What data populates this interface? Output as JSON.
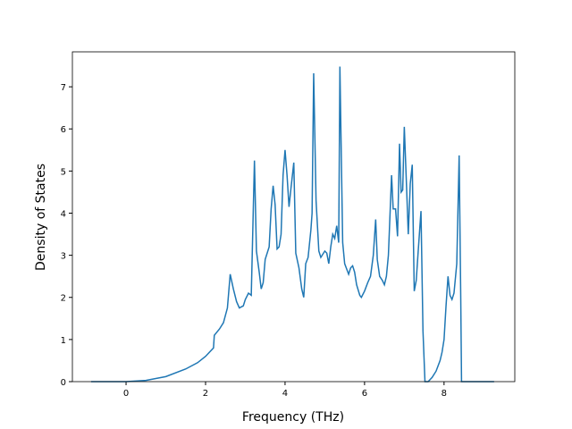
{
  "chart_data": {
    "type": "line",
    "xlabel": "Frequency (THz)",
    "ylabel": "Density of States",
    "x": [
      -0.88,
      0,
      0.5,
      1.0,
      1.5,
      1.8,
      2.0,
      2.2,
      2.22,
      2.35,
      2.45,
      2.55,
      2.62,
      2.7,
      2.78,
      2.85,
      2.95,
      3.0,
      3.08,
      3.15,
      3.23,
      3.28,
      3.35,
      3.4,
      3.45,
      3.5,
      3.6,
      3.65,
      3.7,
      3.75,
      3.8,
      3.85,
      3.9,
      3.95,
      4.0,
      4.05,
      4.1,
      4.15,
      4.22,
      4.27,
      4.35,
      4.42,
      4.47,
      4.52,
      4.58,
      4.65,
      4.68,
      4.72,
      4.78,
      4.85,
      4.9,
      5.0,
      5.05,
      5.1,
      5.15,
      5.2,
      5.25,
      5.3,
      5.35,
      5.38,
      5.45,
      5.5,
      5.6,
      5.65,
      5.7,
      5.75,
      5.8,
      5.88,
      5.92,
      6.0,
      6.08,
      6.15,
      6.22,
      6.28,
      6.32,
      6.38,
      6.45,
      6.5,
      6.55,
      6.6,
      6.68,
      6.72,
      6.78,
      6.83,
      6.88,
      6.92,
      6.96,
      7.0,
      7.05,
      7.1,
      7.15,
      7.2,
      7.25,
      7.3,
      7.35,
      7.42,
      7.47,
      7.52,
      7.6,
      7.7,
      7.8,
      7.9,
      7.95,
      8.0,
      8.05,
      8.1,
      8.15,
      8.2,
      8.25,
      8.32,
      8.38,
      8.42,
      8.44,
      9.26
    ],
    "series": [
      {
        "color": "#1f77b4",
        "values": [
          0,
          0,
          0.03,
          0.12,
          0.3,
          0.45,
          0.6,
          0.8,
          1.1,
          1.25,
          1.4,
          1.75,
          2.55,
          2.2,
          1.9,
          1.75,
          1.8,
          1.95,
          2.1,
          2.05,
          5.25,
          3.1,
          2.6,
          2.2,
          2.35,
          2.9,
          3.2,
          4.1,
          4.65,
          4.2,
          3.15,
          3.2,
          3.5,
          4.9,
          5.5,
          4.9,
          4.15,
          4.6,
          5.2,
          3.05,
          2.7,
          2.2,
          2.0,
          2.8,
          2.95,
          3.6,
          4.0,
          7.32,
          4.3,
          3.1,
          2.95,
          3.1,
          3.05,
          2.8,
          3.2,
          3.5,
          3.4,
          3.7,
          3.3,
          7.48,
          3.3,
          2.8,
          2.55,
          2.7,
          2.75,
          2.6,
          2.3,
          2.05,
          2.0,
          2.15,
          2.35,
          2.5,
          3.0,
          3.85,
          2.9,
          2.5,
          2.4,
          2.3,
          2.5,
          3.0,
          4.9,
          4.1,
          4.1,
          3.45,
          5.65,
          4.5,
          4.55,
          6.05,
          4.8,
          3.5,
          4.7,
          5.15,
          2.15,
          2.4,
          3.1,
          4.05,
          1.2,
          0,
          0,
          0.1,
          0.25,
          0.5,
          0.7,
          1.0,
          1.8,
          2.5,
          2.05,
          1.95,
          2.1,
          2.8,
          5.37,
          2.0,
          0,
          0
        ]
      }
    ],
    "xlim": [
      -1.35,
      9.78
    ],
    "ylim": [
      0,
      7.83
    ],
    "xticks": [
      0,
      2,
      4,
      6,
      8
    ],
    "yticks": [
      0,
      1,
      2,
      3,
      4,
      5,
      6,
      7
    ]
  }
}
